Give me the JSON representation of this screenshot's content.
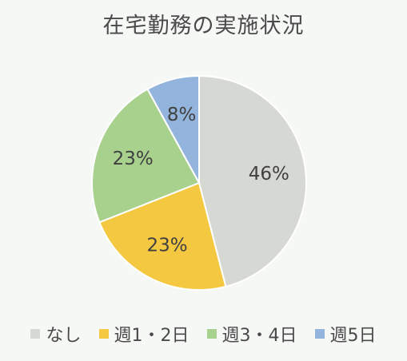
{
  "chart_data": {
    "type": "pie",
    "title": "在宅勤務の実施状況",
    "categories": [
      "なし",
      "週1・2日",
      "週3・4日",
      "週5日"
    ],
    "values": [
      46,
      23,
      23,
      8
    ],
    "labels": [
      "46%",
      "23%",
      "23%",
      "8%"
    ],
    "colors": [
      "#d6d8d4",
      "#f5c842",
      "#a9d18e",
      "#93b4dc"
    ],
    "start_angle_deg": 0,
    "direction": "clockwise",
    "legend_position": "bottom"
  }
}
